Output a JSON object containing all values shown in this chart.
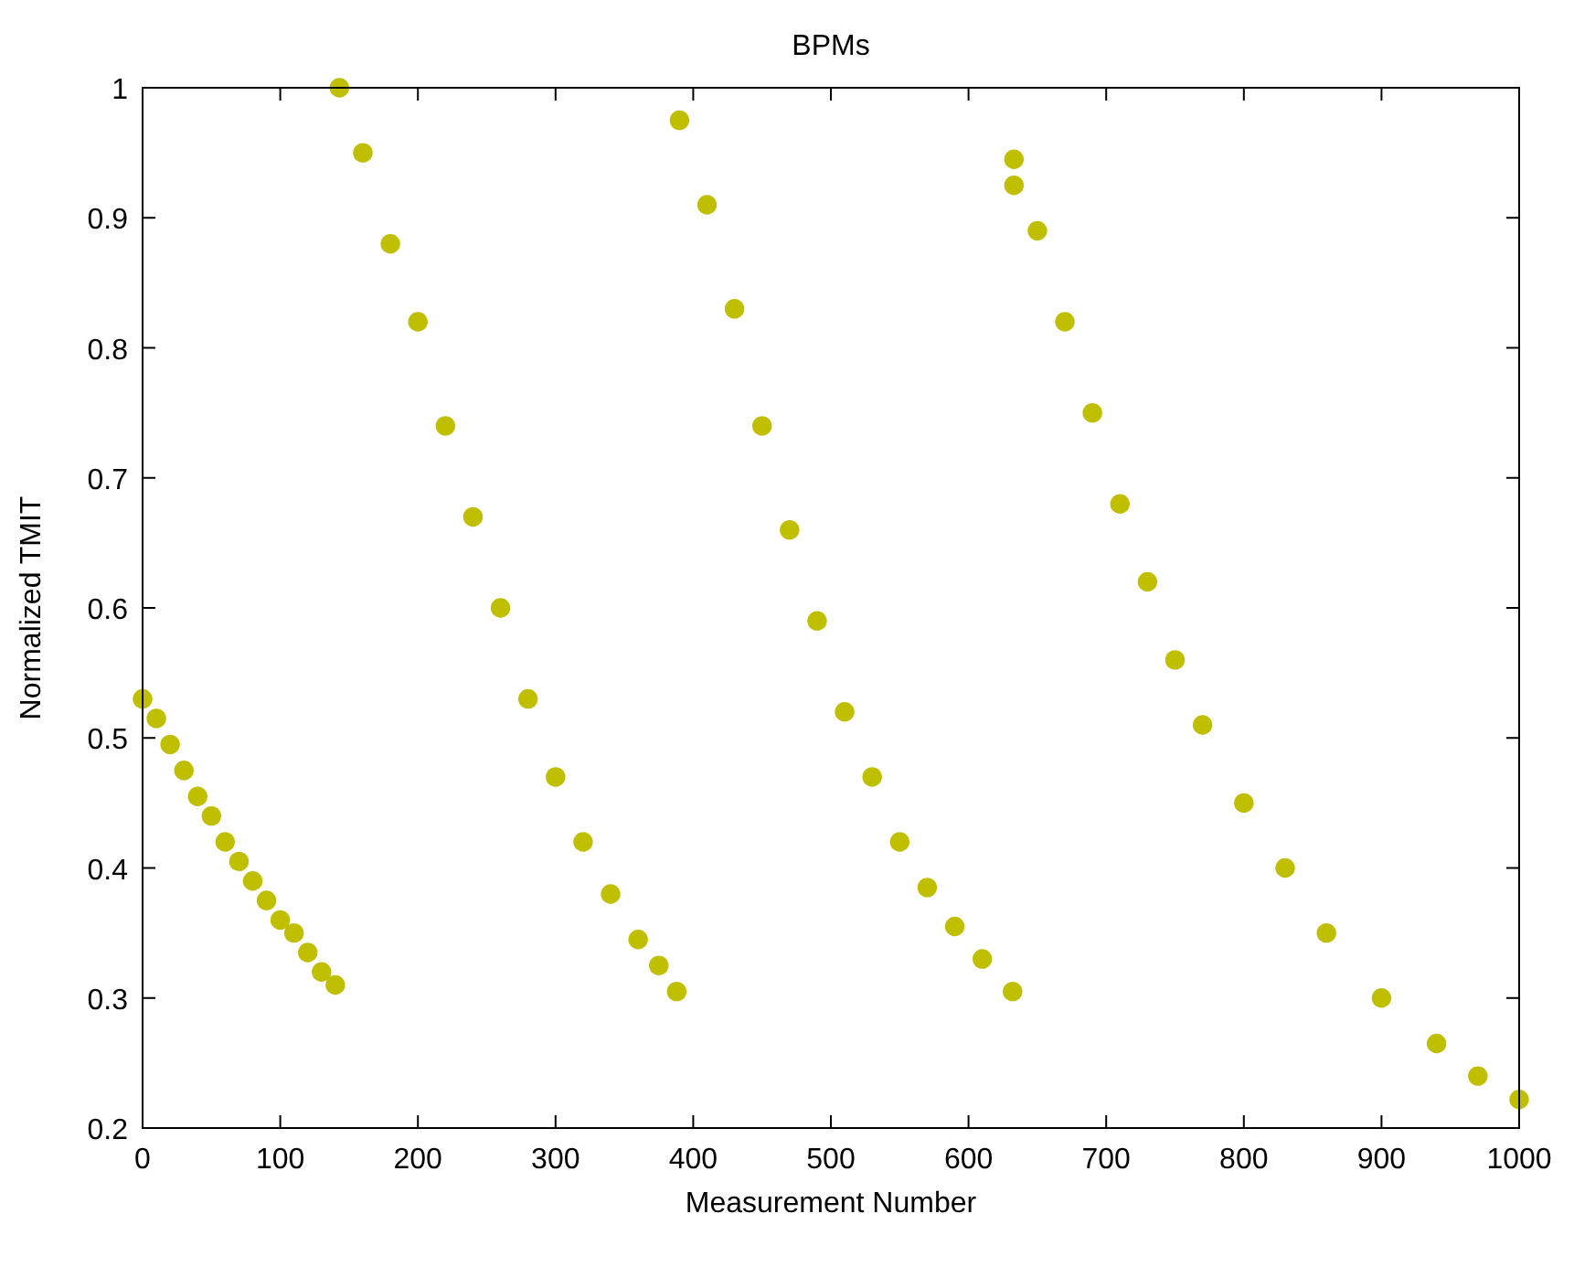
{
  "chart_data": {
    "type": "scatter",
    "title": "BPMs",
    "xlabel": "Measurement Number",
    "ylabel": "Normalized TMIT",
    "xlim": [
      0,
      1000
    ],
    "xticks": [
      0,
      100,
      200,
      300,
      400,
      500,
      600,
      700,
      800,
      900,
      1000
    ],
    "ylim": [
      0.2,
      1
    ],
    "yticks": [
      0.2,
      0.3,
      0.4,
      0.5,
      0.6,
      0.7,
      0.8,
      0.9,
      1
    ],
    "marker": "circle",
    "grid": false,
    "series": [
      {
        "color": "#bfbf00",
        "x": [
          0,
          10,
          20,
          30,
          40,
          50,
          60,
          70,
          80,
          90,
          100,
          110,
          120,
          130,
          140,
          143,
          160,
          180,
          200,
          220,
          240,
          260,
          280,
          300,
          320,
          340,
          360,
          375,
          388,
          390,
          410,
          430,
          450,
          470,
          490,
          510,
          530,
          550,
          570,
          590,
          610,
          632,
          633,
          633,
          650,
          670,
          690,
          710,
          730,
          750,
          770,
          800,
          830,
          860,
          900,
          940,
          970,
          1000
        ],
        "values": [
          0.53,
          0.515,
          0.495,
          0.475,
          0.455,
          0.44,
          0.42,
          0.405,
          0.39,
          0.375,
          0.36,
          0.35,
          0.335,
          0.32,
          0.31,
          1.0,
          0.95,
          0.88,
          0.82,
          0.74,
          0.67,
          0.6,
          0.53,
          0.47,
          0.42,
          0.38,
          0.345,
          0.325,
          0.305,
          0.975,
          0.91,
          0.83,
          0.74,
          0.66,
          0.59,
          0.52,
          0.47,
          0.42,
          0.385,
          0.355,
          0.33,
          0.305,
          0.945,
          0.925,
          0.89,
          0.82,
          0.75,
          0.68,
          0.62,
          0.56,
          0.51,
          0.45,
          0.4,
          0.35,
          0.3,
          0.265,
          0.24,
          0.222
        ]
      }
    ]
  }
}
